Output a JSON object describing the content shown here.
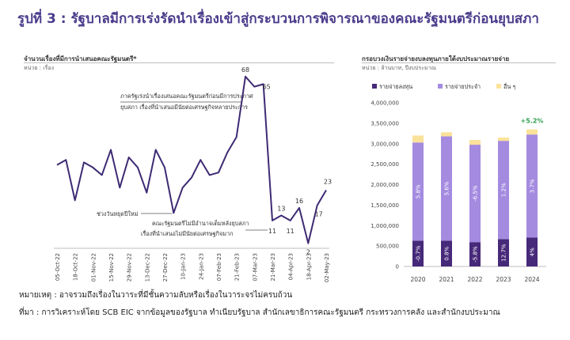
{
  "page": {
    "title": "รูปที่ 3 : รัฐบาลมีการเร่งรัดนำเรื่องเข้าสู่กระบวนการพิจารณาของคณะรัฐมนตรีก่อนยุบสภา",
    "note": "หมายเหตุ : อาจรวมถึงเรื่องในวาระที่มีชั้นความลับหรือเรื่องในวาระจรไม่ครบถ้วน",
    "source": "ที่มา : การวิเคราะห์โดย SCB EIC จากข้อมูลของรัฐบาล ทำเนียบรัฐบาล สำนักเลขาธิการคณะรัฐมนตรี กระทรวงการคลัง และสำนักงบประมาณ"
  },
  "left_panel": {
    "title": "จำนวนเรื่องที่มีการนำเสนอคณะรัฐมนตรี*",
    "unit": "หน่วย : เรื่อง"
  },
  "right_panel": {
    "title": "กรอบวงเงินรายจ่ายงบลงทุนภายใต้งบประมาณรายจ่าย",
    "unit": "หน่วย : ล้านบาท, ปีงบประมาณ"
  },
  "colors": {
    "title": "#4b3c8c",
    "line": "#3d2a73",
    "capex": "#47297a",
    "current": "#a48be0",
    "other": "#fbe29a",
    "growth": "#2e9e4f"
  },
  "chart_data": [
    {
      "type": "line",
      "title": "จำนวนเรื่องที่มีการนำเสนอคณะรัฐมนตรี*",
      "ylabel": "หน่วย : เรื่อง",
      "ylim": [
        0,
        72
      ],
      "grid": false,
      "x_tick_labels": [
        "05-Oct-22",
        "18-Oct-22",
        "01-Nov-22",
        "15-Nov-22",
        "29-Nov-22",
        "13-Dec-22",
        "27-Dec-22",
        "10-Jan-23",
        "24-Jan-23",
        "07-Feb-23",
        "21-Feb-23",
        "07-Mar-23",
        "21-Mar-23",
        "04-Apr-23",
        "18-Apr-23",
        "02-May-23"
      ],
      "series": [
        {
          "values": [
            33,
            35,
            19,
            34,
            32,
            29,
            39,
            24,
            36,
            32,
            22,
            39,
            32,
            14,
            24,
            28,
            35,
            29,
            30,
            38,
            44,
            68,
            64,
            65,
            11,
            13,
            11,
            16,
            2,
            17,
            23
          ]
        }
      ],
      "point_labels": [
        {
          "index": 21,
          "text": "68"
        },
        {
          "index": 23,
          "text": "65"
        },
        {
          "index": 24,
          "text": "11"
        },
        {
          "index": 25,
          "text": "13"
        },
        {
          "index": 26,
          "text": "11"
        },
        {
          "index": 27,
          "text": "16"
        },
        {
          "index": 28,
          "text": "2"
        },
        {
          "index": 29,
          "text": "17"
        },
        {
          "index": 30,
          "text": "23"
        }
      ],
      "annotations": [
        {
          "text": "ภาครัฐเร่งนำเรื่องเสนอคณะรัฐมนตรีก่อนมีการประกาศ",
          "target_index": 21
        },
        {
          "text": "ยุบสภา เรื่องที่นำเสนอมีนัยต่อเศรษฐกิจหลายประการ",
          "target_index": 21
        },
        {
          "text": "ช่วงวันหยุดปีใหม่",
          "target_index": 13
        },
        {
          "text": "คณะรัฐมนตรีไม่มีอำนาจเต็มหลังยุบสภา",
          "target_index": 24
        },
        {
          "text": "เรื่องที่นำเสนอไม่มีนัยต่อเศรษฐกิจมาก",
          "target_index": 24
        }
      ]
    },
    {
      "type": "bar",
      "stacked": true,
      "categories": [
        "2020",
        "2021",
        "2022",
        "2023",
        "2024"
      ],
      "ylim": [
        0,
        4000000
      ],
      "y_ticks": [
        "0",
        "500,000",
        "1,000,000",
        "1,500,000",
        "2,000,000",
        "2,500,000",
        "3,000,000",
        "3,500,000",
        "4,000,000"
      ],
      "legend_position": "top-left",
      "series": [
        {
          "name": "รายจ่ายลงทุน",
          "values": [
            630000,
            630000,
            595000,
            670000,
            705000
          ],
          "labels": [
            "-0.7%",
            "0.8%",
            "-5.8%",
            "12.7%",
            "4%"
          ]
        },
        {
          "name": "รายจ่ายประจำ",
          "values": [
            2400000,
            2550000,
            2380000,
            2400000,
            2520000
          ],
          "labels": [
            "5.8%",
            "5.6%",
            "-6.5%",
            "1.2%",
            "3.7%"
          ]
        },
        {
          "name": "อื่น ๆ",
          "values": [
            170000,
            100000,
            115000,
            80000,
            125000
          ],
          "labels": [
            "",
            "",
            "",
            "",
            ""
          ]
        }
      ],
      "annotations": [
        {
          "text": "+5.2%",
          "target_index": 4
        }
      ]
    }
  ]
}
